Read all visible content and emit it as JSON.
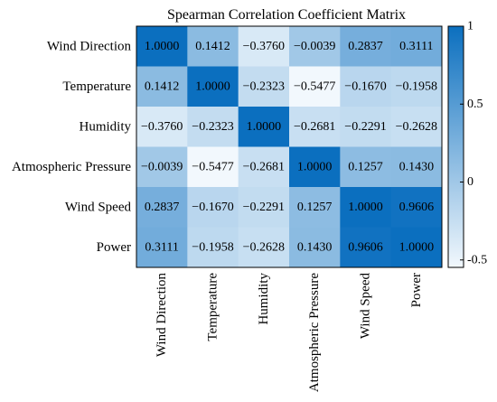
{
  "chart_data": {
    "type": "heatmap",
    "title": "Spearman Correlation Coefficient Matrix",
    "row_labels": [
      "Wind Direction",
      "Temperature",
      "Humidity",
      "Atmospheric Pressure",
      "Wind Speed",
      "Power"
    ],
    "col_labels": [
      "Wind Direction",
      "Temperature",
      "Humidity",
      "Atmospheric Pressure",
      "Wind Speed",
      "Power"
    ],
    "values": [
      [
        1.0,
        0.1412,
        -0.376,
        -0.0039,
        0.2837,
        0.3111
      ],
      [
        0.1412,
        1.0,
        -0.2323,
        -0.5477,
        -0.167,
        -0.1958
      ],
      [
        -0.376,
        -0.2323,
        1.0,
        -0.2681,
        -0.2291,
        -0.2628
      ],
      [
        -0.0039,
        -0.5477,
        -0.2681,
        1.0,
        0.1257,
        0.143
      ],
      [
        0.2837,
        -0.167,
        -0.2291,
        0.1257,
        1.0,
        0.9606
      ],
      [
        0.3111,
        -0.1958,
        -0.2628,
        0.143,
        0.9606,
        1.0
      ]
    ],
    "cell_labels": [
      [
        "1.0000",
        "0.1412",
        "−0.3760",
        "−0.0039",
        "0.2837",
        "0.3111"
      ],
      [
        "0.1412",
        "1.0000",
        "−0.2323",
        "−0.5477",
        "−0.1670",
        "−0.1958"
      ],
      [
        "−0.3760",
        "−0.2323",
        "1.0000",
        "−0.2681",
        "−0.2291",
        "−0.2628"
      ],
      [
        "−0.0039",
        "−0.5477",
        "−0.2681",
        "1.0000",
        "0.1257",
        "0.1430"
      ],
      [
        "0.2837",
        "−0.1670",
        "−0.2291",
        "0.1257",
        "1.0000",
        "0.9606"
      ],
      [
        "0.3111",
        "−0.1958",
        "−0.2628",
        "0.1430",
        "0.9606",
        "1.0000"
      ]
    ],
    "colorbar": {
      "range": [
        -0.5477,
        1
      ],
      "ticks": [
        1,
        0.5,
        0,
        -0.5
      ],
      "tick_labels": [
        "1",
        "0.5",
        "0",
        "-0.5"
      ],
      "color_low": "#f2f8fd",
      "color_high": "#0b6fbf"
    }
  }
}
